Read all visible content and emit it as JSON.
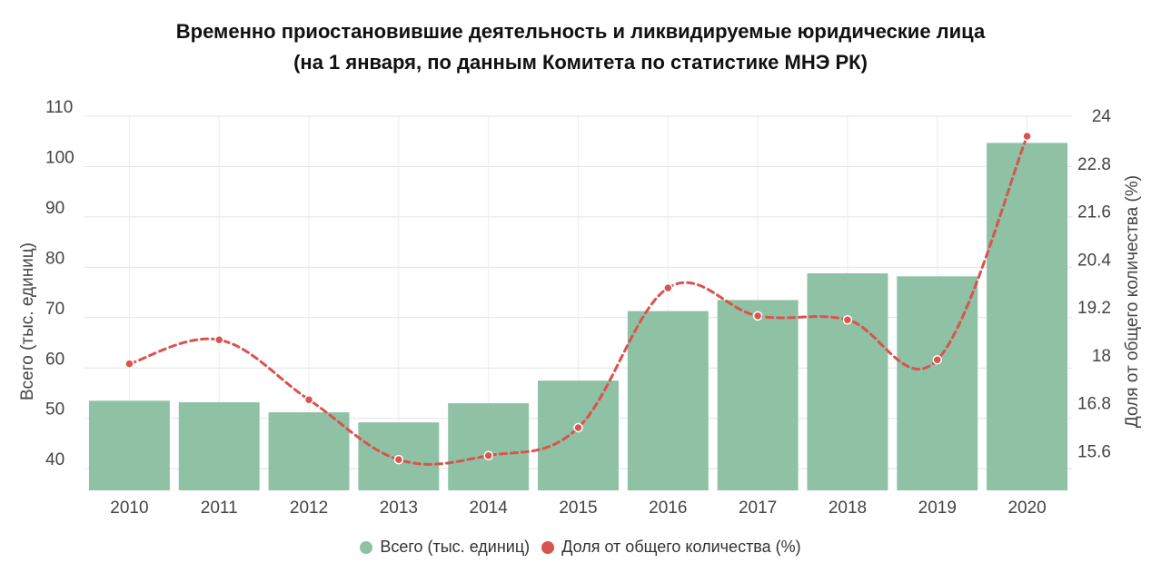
{
  "chart_data": {
    "type": "bar",
    "title_line1": "Временно приостановившие деятельность и ликвидируемые юридические лица",
    "title_line2": "(на 1 января, по данным Комитета по статистике МНЭ РК)",
    "categories": [
      "2010",
      "2011",
      "2012",
      "2013",
      "2014",
      "2015",
      "2016",
      "2017",
      "2018",
      "2019",
      "2020"
    ],
    "series": [
      {
        "name": "Всего (тыс. единиц)",
        "type": "bar",
        "axis": "left",
        "color": "#8fc1a5",
        "values": [
          53.5,
          53.2,
          51.2,
          49.2,
          53.0,
          57.5,
          71.3,
          73.5,
          78.8,
          78.2,
          104.7
        ]
      },
      {
        "name": "Доля от общего количества (%)",
        "type": "line",
        "axis": "right",
        "color": "#d9534f",
        "style": "dashed",
        "values": [
          17.8,
          18.4,
          16.9,
          15.4,
          15.5,
          16.2,
          19.7,
          19.0,
          18.9,
          17.9,
          23.5
        ]
      }
    ],
    "y_left": {
      "label": "Всего (тыс. единиц)",
      "ticks": [
        "40",
        "50",
        "60",
        "70",
        "80",
        "90",
        "100",
        "110"
      ],
      "range": [
        35.7,
        110
      ]
    },
    "y_right": {
      "label": "Доля от общего количества (%)",
      "ticks": [
        "15.6",
        "16.8",
        "18",
        "19.2",
        "20.4",
        "21.6",
        "22.8",
        "24"
      ],
      "range": [
        14.63,
        24
      ]
    },
    "grid": true,
    "legend_position": "bottom"
  }
}
